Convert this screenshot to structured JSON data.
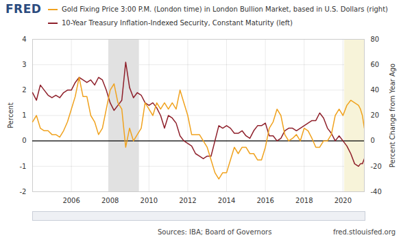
{
  "chart_data": {
    "type": "line",
    "logo": "FRED",
    "ylabel": "Percent",
    "y2label": "Percent Change from Year Ago",
    "source": "Sources: IBA; Board of Governors",
    "credit": "fred.stlouisfed.org",
    "grid": true,
    "xlim": [
      2004,
      2021.1
    ],
    "xticks": [
      2006,
      2008,
      2010,
      2012,
      2014,
      2016,
      2018,
      2020
    ],
    "ylim": [
      -2,
      4
    ],
    "yticks": [
      -2,
      -1,
      0,
      1,
      2,
      3,
      4
    ],
    "y2lim": [
      -40,
      80
    ],
    "y2ticks": [
      -40,
      -20,
      0,
      20,
      40,
      60,
      80
    ],
    "shaded_regions": [
      {
        "start": 2007.92,
        "end": 2009.5,
        "color": "#e1e1e1"
      },
      {
        "start": 2020.08,
        "end": 2021.1,
        "color": "#f7f3d9"
      }
    ],
    "x": [
      2004.0,
      2004.2,
      2004.4,
      2004.6,
      2004.8,
      2005.0,
      2005.2,
      2005.4,
      2005.6,
      2005.8,
      2006.0,
      2006.2,
      2006.4,
      2006.6,
      2006.8,
      2007.0,
      2007.2,
      2007.4,
      2007.6,
      2007.8,
      2008.0,
      2008.2,
      2008.4,
      2008.6,
      2008.8,
      2009.0,
      2009.2,
      2009.4,
      2009.6,
      2009.8,
      2010.0,
      2010.2,
      2010.4,
      2010.6,
      2010.8,
      2011.0,
      2011.2,
      2011.4,
      2011.6,
      2011.8,
      2012.0,
      2012.2,
      2012.4,
      2012.6,
      2012.8,
      2013.0,
      2013.2,
      2013.4,
      2013.6,
      2013.8,
      2014.0,
      2014.2,
      2014.4,
      2014.6,
      2014.8,
      2015.0,
      2015.2,
      2015.4,
      2015.6,
      2015.8,
      2016.0,
      2016.2,
      2016.4,
      2016.6,
      2016.8,
      2017.0,
      2017.2,
      2017.4,
      2017.6,
      2017.8,
      2018.0,
      2018.2,
      2018.4,
      2018.6,
      2018.8,
      2019.0,
      2019.2,
      2019.4,
      2019.6,
      2019.8,
      2020.0,
      2020.2,
      2020.4,
      2020.6,
      2020.8,
      2020.9,
      2021.0,
      2021.1
    ],
    "series": [
      {
        "name": "10-Year Treasury Inflation-Indexed Security, Constant Maturity (left)",
        "color": "#8e1f2a",
        "values": [
          1.9,
          1.6,
          2.2,
          2.0,
          1.8,
          1.7,
          1.8,
          1.7,
          1.9,
          2.0,
          2.0,
          2.3,
          2.5,
          2.4,
          2.3,
          2.4,
          2.2,
          2.5,
          2.4,
          2.0,
          1.5,
          1.2,
          1.4,
          1.6,
          3.1,
          2.1,
          1.7,
          1.9,
          1.8,
          1.5,
          1.4,
          1.5,
          1.3,
          1.0,
          0.5,
          1.0,
          0.9,
          0.7,
          0.2,
          0.0,
          -0.1,
          -0.2,
          -0.5,
          -0.6,
          -0.7,
          -0.6,
          -0.6,
          0.0,
          0.6,
          0.5,
          0.6,
          0.5,
          0.3,
          0.3,
          0.4,
          0.2,
          0.1,
          0.4,
          0.6,
          0.6,
          0.7,
          0.2,
          0.2,
          0.0,
          0.1,
          0.4,
          0.5,
          0.5,
          0.4,
          0.5,
          0.6,
          0.7,
          0.8,
          0.8,
          1.1,
          0.9,
          0.5,
          0.3,
          0.0,
          0.2,
          0.0,
          -0.2,
          -0.5,
          -0.9,
          -1.0,
          -0.9,
          -0.9,
          -0.7
        ]
      },
      {
        "name": "Gold Fixing Price 3:00 P.M. (London time) in London Bullion Market, based in U.S. Dollars (right)",
        "color": "#f0a21e",
        "axis": "y2",
        "values": [
          15,
          20,
          10,
          8,
          8,
          5,
          5,
          3,
          8,
          15,
          25,
          35,
          50,
          35,
          35,
          20,
          15,
          5,
          10,
          25,
          40,
          45,
          30,
          25,
          -5,
          10,
          0,
          5,
          10,
          30,
          25,
          20,
          30,
          25,
          30,
          25,
          30,
          25,
          40,
          30,
          20,
          5,
          5,
          5,
          0,
          -5,
          -15,
          -25,
          -30,
          -25,
          -25,
          -15,
          -5,
          -10,
          -5,
          -5,
          -10,
          -10,
          -15,
          -15,
          -5,
          10,
          15,
          25,
          20,
          5,
          0,
          2,
          5,
          0,
          10,
          8,
          2,
          -5,
          -5,
          0,
          0,
          5,
          20,
          25,
          20,
          28,
          32,
          30,
          28,
          25,
          20,
          10
        ]
      }
    ]
  }
}
